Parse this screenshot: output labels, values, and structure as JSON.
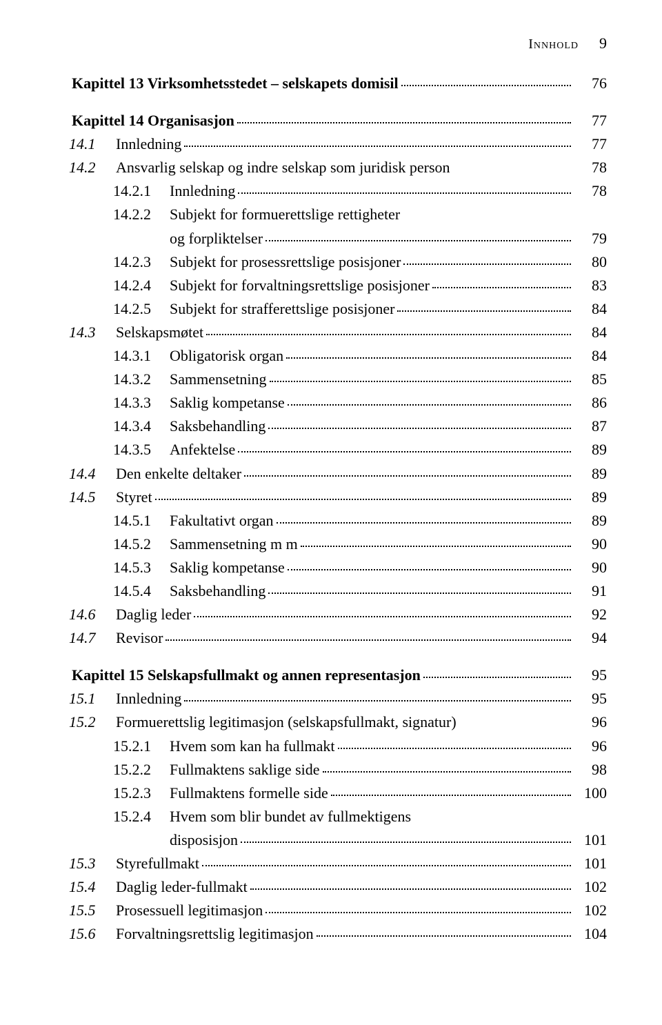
{
  "header": {
    "label": "Innhold",
    "page": "9"
  },
  "entries": [
    {
      "type": "chapter",
      "text": "Kapittel 13 Virksomhetsstedet – selskapets domisil",
      "page": "76",
      "leader": true
    },
    {
      "type": "gap"
    },
    {
      "type": "chapter",
      "text": "Kapittel 14 Organisasjon",
      "page": "77",
      "leader": true
    },
    {
      "type": "l1",
      "num": "14.1",
      "text": "Innledning",
      "page": "77",
      "leader": true
    },
    {
      "type": "l1",
      "num": "14.2",
      "text": "Ansvarlig selskap og indre selskap som juridisk person",
      "page": "78",
      "leader": false
    },
    {
      "type": "l2",
      "num": "14.2.1",
      "text": "Innledning",
      "page": "78",
      "leader": true
    },
    {
      "type": "l2",
      "num": "14.2.2",
      "text": "Subjekt for formuerettslige rettigheter",
      "page": "",
      "leader": false
    },
    {
      "type": "cont",
      "text": "og forpliktelser",
      "page": "79",
      "leader": true
    },
    {
      "type": "l2",
      "num": "14.2.3",
      "text": "Subjekt for prosessrettslige posisjoner",
      "page": "80",
      "leader": true
    },
    {
      "type": "l2",
      "num": "14.2.4",
      "text": "Subjekt for forvaltningsrettslige posisjoner",
      "page": "83",
      "leader": true
    },
    {
      "type": "l2",
      "num": "14.2.5",
      "text": "Subjekt for strafferettslige posisjoner",
      "page": "84",
      "leader": true
    },
    {
      "type": "l1",
      "num": "14.3",
      "text": "Selskapsmøtet",
      "page": "84",
      "leader": true
    },
    {
      "type": "l2",
      "num": "14.3.1",
      "text": "Obligatorisk organ",
      "page": "84",
      "leader": true
    },
    {
      "type": "l2",
      "num": "14.3.2",
      "text": "Sammensetning",
      "page": "85",
      "leader": true
    },
    {
      "type": "l2",
      "num": "14.3.3",
      "text": "Saklig kompetanse",
      "page": "86",
      "leader": true
    },
    {
      "type": "l2",
      "num": "14.3.4",
      "text": "Saksbehandling",
      "page": "87",
      "leader": true
    },
    {
      "type": "l2",
      "num": "14.3.5",
      "text": "Anfektelse",
      "page": "89",
      "leader": true
    },
    {
      "type": "l1",
      "num": "14.4",
      "text": "Den enkelte deltaker",
      "page": "89",
      "leader": true
    },
    {
      "type": "l1",
      "num": "14.5",
      "text": "Styret",
      "page": "89",
      "leader": true
    },
    {
      "type": "l2",
      "num": "14.5.1",
      "text": "Fakultativt organ",
      "page": "89",
      "leader": true
    },
    {
      "type": "l2",
      "num": "14.5.2",
      "text": "Sammensetning m m",
      "page": "90",
      "leader": true
    },
    {
      "type": "l2",
      "num": "14.5.3",
      "text": "Saklig kompetanse",
      "page": "90",
      "leader": true
    },
    {
      "type": "l2",
      "num": "14.5.4",
      "text": "Saksbehandling",
      "page": "91",
      "leader": true
    },
    {
      "type": "l1",
      "num": "14.6",
      "text": "Daglig leder",
      "page": "92",
      "leader": true
    },
    {
      "type": "l1",
      "num": "14.7",
      "text": "Revisor",
      "page": "94",
      "leader": true
    },
    {
      "type": "gap"
    },
    {
      "type": "chapter",
      "text": "Kapittel 15 Selskapsfullmakt og annen representasjon",
      "page": "95",
      "leader": true
    },
    {
      "type": "l1",
      "num": "15.1",
      "text": "Innledning",
      "page": "95",
      "leader": true
    },
    {
      "type": "l1",
      "num": "15.2",
      "text": "Formuerettslig legitimasjon (selskapsfullmakt, signatur)",
      "page": "96",
      "leader": false
    },
    {
      "type": "l2",
      "num": "15.2.1",
      "text": "Hvem som kan ha fullmakt",
      "page": "96",
      "leader": true
    },
    {
      "type": "l2",
      "num": "15.2.2",
      "text": "Fullmaktens saklige side",
      "page": "98",
      "leader": true
    },
    {
      "type": "l2",
      "num": "15.2.3",
      "text": "Fullmaktens formelle side",
      "page": "100",
      "leader": true
    },
    {
      "type": "l2",
      "num": "15.2.4",
      "text": "Hvem som blir bundet av fullmektigens",
      "page": "",
      "leader": false
    },
    {
      "type": "cont",
      "text": "disposisjon",
      "page": "101",
      "leader": true
    },
    {
      "type": "l1",
      "num": "15.3",
      "text": "Styrefullmakt",
      "page": "101",
      "leader": true
    },
    {
      "type": "l1",
      "num": "15.4",
      "text": "Daglig leder-fullmakt",
      "page": "102",
      "leader": true
    },
    {
      "type": "l1",
      "num": "15.5",
      "text": "Prosessuell legitimasjon",
      "page": "102",
      "leader": true
    },
    {
      "type": "l1",
      "num": "15.6",
      "text": "Forvaltningsrettslig legitimasjon",
      "page": "104",
      "leader": true
    }
  ]
}
